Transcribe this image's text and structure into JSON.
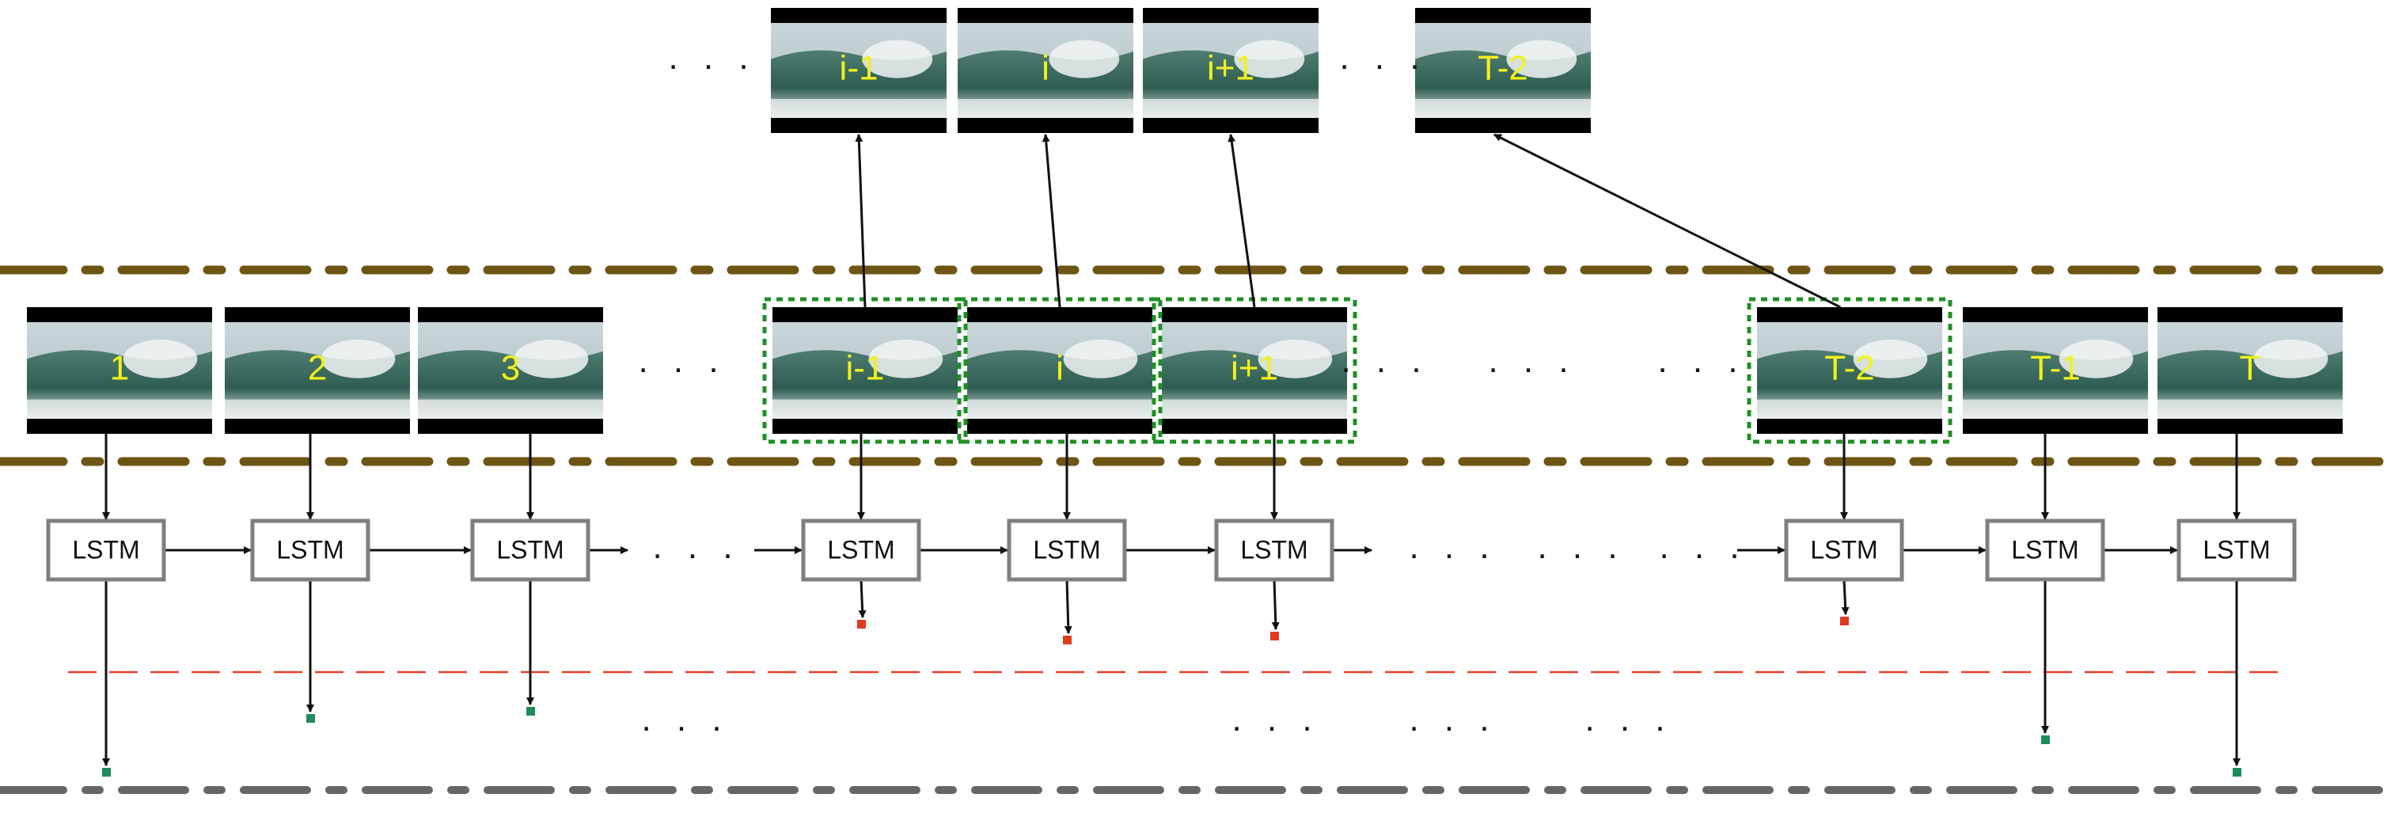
{
  "colors": {
    "film_strip": "#6e5513",
    "bottom_dash": "#666666",
    "split_line": "#e8402a",
    "selection_box": "#1f8f24",
    "output_green": "#1e8c5a",
    "output_red": "#e23a1f",
    "lstm_border": "#7f7f7f",
    "arrow": "#111111",
    "frame_label": "#f2f21c"
  },
  "dots_text": ". . .",
  "frames": [
    {
      "label": "1"
    },
    {
      "label": "2"
    },
    {
      "label": "3"
    },
    {
      "label": "i-1"
    },
    {
      "label": "i"
    },
    {
      "label": "i+1"
    },
    {
      "label": "T-2"
    },
    {
      "label": "T-1"
    },
    {
      "label": "T"
    }
  ],
  "selected_frames": [
    {
      "label": "i-1"
    },
    {
      "label": "i"
    },
    {
      "label": "i+1"
    },
    {
      "label": "T-2"
    }
  ],
  "lstm_cells": [
    {
      "label": "LSTM",
      "output": "green"
    },
    {
      "label": "LSTM",
      "output": "green"
    },
    {
      "label": "LSTM",
      "output": "green"
    },
    {
      "label": "LSTM",
      "output": "red"
    },
    {
      "label": "LSTM",
      "output": "red"
    },
    {
      "label": "LSTM",
      "output": "red"
    },
    {
      "label": "LSTM",
      "output": "red"
    },
    {
      "label": "LSTM",
      "output": "green"
    },
    {
      "label": "LSTM",
      "output": "green"
    }
  ]
}
